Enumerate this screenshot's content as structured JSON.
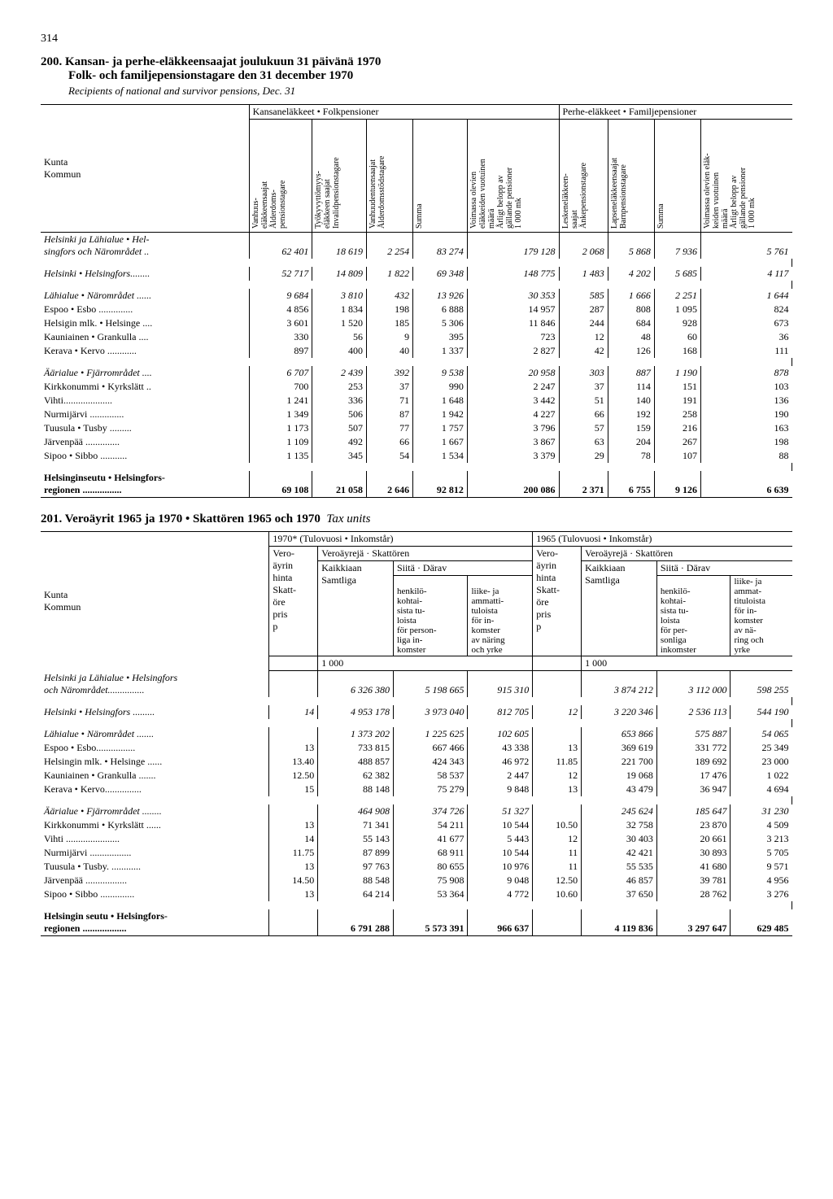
{
  "page_number": "314",
  "table200": {
    "title_fi": "200. Kansan- ja perhe-eläkkeensaajat joulukuun 31 päivänä 1970",
    "title_sv": "Folk- och familjepensionstagare den 31 december 1970",
    "title_en": "Recipients of national and survivor pensions, Dec. 31",
    "group1_header": "Kansaneläkkeet • Folkpensioner",
    "group2_header": "Perhe-eläkkeet • Familjepensioner",
    "row_header_label": "Kunta\nKommun",
    "col_headers": [
      "Vanhuus-\neläkkeensaajat\nÅlderdoms-\npensionstagare",
      "Työkyvyttömyys-\neläkkeen saajat\nInvalidpensionstagare",
      "Vanhuudentuensaajat\nÅlderdomsstödstagare",
      "Summa",
      "Voimassa olevien\neläkkeiden vuotuinen\nmäärä\nÅrligt belopp av\ngällande pensioner\n1 000 mk",
      "Leskeneläkkeen-\nsaajat\nÄnkepensionstagare",
      "Lapseneläkkeensaajat\nBarnpensionstagare",
      "Summa",
      "Voimassa olevien eläk-\nkeiden vuotuinen\nmäärä\nÅrligt belopp av\ngällande pensioner\n1 000 mk"
    ],
    "rows": [
      {
        "label": "Helsinki ja Lähialue • Hel-\nsingfors och Närområdet ..",
        "it": true,
        "v": [
          "62 401",
          "18 619",
          "2 254",
          "83 274",
          "179 128",
          "2 068",
          "5 868",
          "7 936",
          "5 761"
        ]
      },
      {
        "spacer": true
      },
      {
        "label": "Helsinki • Helsingfors........",
        "it": true,
        "v": [
          "52 717",
          "14 809",
          "1 822",
          "69 348",
          "148 775",
          "1 483",
          "4 202",
          "5 685",
          "4 117"
        ]
      },
      {
        "spacer": true
      },
      {
        "label": "Lähialue • Närområdet ......",
        "it": true,
        "v": [
          "9 684",
          "3 810",
          "432",
          "13 926",
          "30 353",
          "585",
          "1 666",
          "2 251",
          "1 644"
        ]
      },
      {
        "label": "Espoo • Esbo ..............",
        "v": [
          "4 856",
          "1 834",
          "198",
          "6 888",
          "14 957",
          "287",
          "808",
          "1 095",
          "824"
        ]
      },
      {
        "label": "Helsigin mlk. • Helsinge ....",
        "v": [
          "3 601",
          "1 520",
          "185",
          "5 306",
          "11 846",
          "244",
          "684",
          "928",
          "673"
        ]
      },
      {
        "label": "Kauniainen • Grankulla ....",
        "v": [
          "330",
          "56",
          "9",
          "395",
          "723",
          "12",
          "48",
          "60",
          "36"
        ]
      },
      {
        "label": "Kerava • Kervo ............",
        "v": [
          "897",
          "400",
          "40",
          "1 337",
          "2 827",
          "42",
          "126",
          "168",
          "111"
        ]
      },
      {
        "spacer": true
      },
      {
        "label": "Äärialue • Fjärrområdet ....",
        "it": true,
        "v": [
          "6 707",
          "2 439",
          "392",
          "9 538",
          "20 958",
          "303",
          "887",
          "1 190",
          "878"
        ]
      },
      {
        "label": "Kirkkonummi • Kyrkslätt ..",
        "v": [
          "700",
          "253",
          "37",
          "990",
          "2 247",
          "37",
          "114",
          "151",
          "103"
        ]
      },
      {
        "label": "Vihti....................",
        "v": [
          "1 241",
          "336",
          "71",
          "1 648",
          "3 442",
          "51",
          "140",
          "191",
          "136"
        ]
      },
      {
        "label": "Nurmijärvi ..............",
        "v": [
          "1 349",
          "506",
          "87",
          "1 942",
          "4 227",
          "66",
          "192",
          "258",
          "190"
        ]
      },
      {
        "label": "Tuusula • Tusby  .........",
        "v": [
          "1 173",
          "507",
          "77",
          "1 757",
          "3 796",
          "57",
          "159",
          "216",
          "163"
        ]
      },
      {
        "label": "Järvenpää  ..............",
        "v": [
          "1 109",
          "492",
          "66",
          "1 667",
          "3 867",
          "63",
          "204",
          "267",
          "198"
        ]
      },
      {
        "label": "Sipoo • Sibbo   ...........",
        "v": [
          "1 135",
          "345",
          "54",
          "1 534",
          "3 379",
          "29",
          "78",
          "107",
          "88"
        ]
      },
      {
        "spacer": true
      },
      {
        "label": "Helsinginseutu  •  Helsingfors-\nregionen ................",
        "bold": true,
        "v": [
          "69 108",
          "21 058",
          "2 646",
          "92 812",
          "200 086",
          "2 371",
          "6 755",
          "9 126",
          "6 639"
        ]
      }
    ]
  },
  "table201": {
    "title": "201. Veroäyrit 1965 ja 1970  •  Skattören 1965 och 1970",
    "title_it": "Tax units",
    "row_header_label": "Kunta\nKommun",
    "year1970": "1970*  (Tulovuosi • Inkomstår)",
    "year1965": "1965 (Tulovuosi • Inkomstår)",
    "sub_vero": "Vero-\näyrin\nhinta\nSkatt-\nöre\npris\np",
    "sub_skatt": "Veroäyrejä · Skattören",
    "sub_siita": "Siitä · Därav",
    "sub_kaikkiaan": "Kaikkiaan\nSamtliga",
    "sub_henkilo": "henkilö-\nkohtai-\nsista tu-\nloista\nför person-\nliga in-\nkomster",
    "sub_liike": "liike- ja\nammatti-\ntuloista\nför in-\nkomster\nav näring\noch yrke",
    "sub_henkilo2": "henkilö-\nkohtai-\nsista tu-\nloista\nför per-\nsonliga\ninkomster",
    "sub_liike2": "liike- ja\nammat-\ntituloista\nför in-\nkomster\nav nä-\nring och\nyrke",
    "unit": "1 000",
    "rows": [
      {
        "label": "Helsinki ja Lähialue • Helsingfors\noch Närområdet...............",
        "it": true,
        "v": [
          "",
          "6 326 380",
          "5 198 665",
          "915 310",
          "",
          "3 874 212",
          "3 112 000",
          "598 255"
        ]
      },
      {
        "spacer": true
      },
      {
        "label": "Helsinki • Helsingfors .........",
        "it": true,
        "v": [
          "14",
          "4 953 178",
          "3 973 040",
          "812 705",
          "12",
          "3 220 346",
          "2 536 113",
          "544 190"
        ]
      },
      {
        "spacer": true
      },
      {
        "label": "Lähialue • Närområdet  .......",
        "it": true,
        "v": [
          "",
          "1 373 202",
          "1 225 625",
          "102 605",
          "",
          "653 866",
          "575 887",
          "54 065"
        ]
      },
      {
        "label": "Espoo • Esbo................",
        "v": [
          "13",
          "733 815",
          "667 466",
          "43 338",
          "13",
          "369 619",
          "331 772",
          "25 349"
        ]
      },
      {
        "label": "Helsingin mlk. • Helsinge ......",
        "v": [
          "13.40",
          "488 857",
          "424 343",
          "46 972",
          "11.85",
          "221 700",
          "189 692",
          "23 000"
        ]
      },
      {
        "label": "Kauniainen • Grankulla .......",
        "v": [
          "12.50",
          "62 382",
          "58 537",
          "2 447",
          "12",
          "19 068",
          "17 476",
          "1 022"
        ]
      },
      {
        "label": "Kerava • Kervo...............",
        "v": [
          "15",
          "88 148",
          "75 279",
          "9 848",
          "13",
          "43 479",
          "36 947",
          "4 694"
        ]
      },
      {
        "spacer": true
      },
      {
        "label": "Äärialue • Fjärrområdet ........",
        "it": true,
        "v": [
          "",
          "464 908",
          "374 726",
          "51 327",
          "",
          "245 624",
          "185 647",
          "31 230"
        ]
      },
      {
        "label": "Kirkkonummi • Kyrkslätt ......",
        "v": [
          "13",
          "71 341",
          "54 211",
          "10 544",
          "10.50",
          "32 758",
          "23 870",
          "4 509"
        ]
      },
      {
        "label": "Vihti ......................",
        "v": [
          "14",
          "55 143",
          "41 677",
          "5 443",
          "12",
          "30 403",
          "20 661",
          "3 213"
        ]
      },
      {
        "label": "Nurmijärvi .................",
        "v": [
          "11.75",
          "87 899",
          "68 911",
          "10 544",
          "11",
          "42 421",
          "30 893",
          "5 705"
        ]
      },
      {
        "label": "Tuusula • Tusby.  ............",
        "v": [
          "13",
          "97 763",
          "80 655",
          "10 976",
          "11",
          "55 535",
          "41 680",
          "9 571"
        ]
      },
      {
        "label": "Järvenpää .................",
        "v": [
          "14.50",
          "88 548",
          "75 908",
          "9 048",
          "12.50",
          "46 857",
          "39 781",
          "4 956"
        ]
      },
      {
        "label": "Sipoo • Sibbo  ..............",
        "v": [
          "13",
          "64 214",
          "53 364",
          "4 772",
          "10.60",
          "37 650",
          "28 762",
          "3 276"
        ]
      },
      {
        "spacer": true
      },
      {
        "label": "Helsingin seutu  •  Helsingfors-\nregionen ..................",
        "bold": true,
        "v": [
          "",
          "6 791 288",
          "5 573 391",
          "966 637",
          "",
          "4 119 836",
          "3 297 647",
          "629 485"
        ]
      }
    ]
  }
}
